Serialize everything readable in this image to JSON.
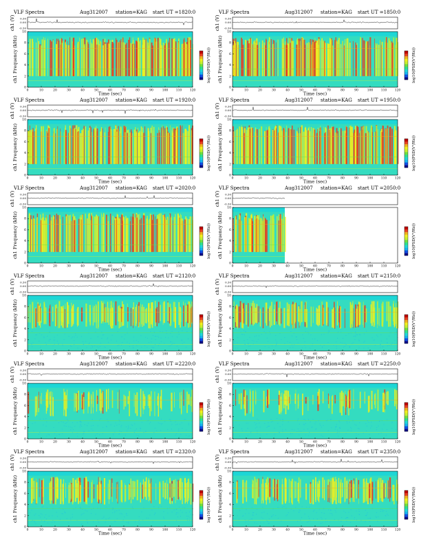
{
  "chart_data": [
    {
      "type": "heatmap",
      "title": "VLF Spectra",
      "date": "Aug312007",
      "station": "station=KAG",
      "start_ut": "start  UT  =1820:0",
      "upper_ylabel": "ch1 (V)",
      "upper_ticks": [
        "0.30",
        "0.00",
        "-0.30"
      ],
      "ylabel": "ch1 Frequency (kHz)",
      "xlabel": "Time  (sec)",
      "xlim": [
        0,
        120
      ],
      "ylim": [
        0,
        10
      ],
      "xticks": [
        0,
        10,
        20,
        30,
        40,
        50,
        60,
        70,
        80,
        90,
        100,
        110,
        120
      ],
      "yticks": [
        0,
        2,
        4,
        6,
        8,
        10
      ],
      "colorbar_label": "log10(PSD(V²/Hz))",
      "data_end_sec": 120,
      "activity": "high"
    },
    {
      "type": "heatmap",
      "title": "VLF Spectra",
      "date": "Aug312007",
      "station": "station=KAG",
      "start_ut": "start  UT  =1850:0",
      "upper_ylabel": "ch1 (V)",
      "upper_ticks": [
        "0.30",
        "0.00",
        "-0.30"
      ],
      "ylabel": "ch1 Frequency (kHz)",
      "xlabel": "Time  (sec)",
      "xlim": [
        0,
        120
      ],
      "ylim": [
        0,
        10
      ],
      "xticks": [
        0,
        10,
        20,
        30,
        40,
        50,
        60,
        70,
        80,
        90,
        100,
        110,
        120
      ],
      "yticks": [
        0,
        2,
        4,
        6,
        8,
        10
      ],
      "colorbar_label": "log10(PSD(V²/Hz))",
      "data_end_sec": 120,
      "activity": "high"
    },
    {
      "type": "heatmap",
      "title": "VLF Spectra",
      "date": "Aug312007",
      "station": "station=KAG",
      "start_ut": "start  UT  =1920:0",
      "upper_ylabel": "ch1 (V)",
      "upper_ticks": [
        "0.30",
        "0.00",
        "-0.30"
      ],
      "ylabel": "ch1 Frequency (kHz)",
      "xlabel": "Time  (sec)",
      "xlim": [
        0,
        120
      ],
      "ylim": [
        0,
        10
      ],
      "xticks": [
        0,
        10,
        20,
        30,
        40,
        50,
        60,
        70,
        80,
        90,
        100,
        110,
        120
      ],
      "yticks": [
        0,
        2,
        4,
        6,
        8,
        10
      ],
      "colorbar_label": "log10(PSD(V²/Hz))",
      "data_end_sec": 120,
      "activity": "high"
    },
    {
      "type": "heatmap",
      "title": "VLF Spectra",
      "date": "Aug312007",
      "station": "station=KAG",
      "start_ut": "start  UT  =1950:0",
      "upper_ylabel": "ch1 (V)",
      "upper_ticks": [
        "0.30",
        "0.00",
        "-0.30"
      ],
      "ylabel": "ch1 Frequency (kHz)",
      "xlabel": "Time  (sec)",
      "xlim": [
        0,
        120
      ],
      "ylim": [
        0,
        10
      ],
      "xticks": [
        0,
        10,
        20,
        30,
        40,
        50,
        60,
        70,
        80,
        90,
        100,
        110,
        120
      ],
      "yticks": [
        0,
        2,
        4,
        6,
        8,
        10
      ],
      "colorbar_label": "log10(PSD(V²/Hz))",
      "data_end_sec": 120,
      "activity": "high"
    },
    {
      "type": "heatmap",
      "title": "VLF Spectra",
      "date": "Aug312007",
      "station": "station=KAG",
      "start_ut": "start  UT  =2020:0",
      "upper_ylabel": "ch1 (V)",
      "upper_ticks": [
        "0.30",
        "0.00",
        "-0.30"
      ],
      "ylabel": "ch1 Frequency (kHz)",
      "xlabel": "Time  (sec)",
      "xlim": [
        0,
        120
      ],
      "ylim": [
        0,
        10
      ],
      "xticks": [
        0,
        10,
        20,
        30,
        40,
        50,
        60,
        70,
        80,
        90,
        100,
        110,
        120
      ],
      "yticks": [
        0,
        2,
        4,
        6,
        8,
        10
      ],
      "colorbar_label": "log10(PSD(V²/Hz))",
      "data_end_sec": 120,
      "activity": "high"
    },
    {
      "type": "heatmap",
      "title": "VLF Spectra",
      "date": "Aug312007",
      "station": "station=KAG",
      "start_ut": "start  UT  =2050:0",
      "upper_ylabel": "ch1 (V)",
      "upper_ticks": [
        "0.30",
        "0.00",
        "-0.30"
      ],
      "ylabel": "ch1 Frequency (kHz)",
      "xlabel": "Time  (sec)",
      "xlim": [
        0,
        120
      ],
      "ylim": [
        0,
        10
      ],
      "xticks": [
        0,
        10,
        20,
        30,
        40,
        50,
        60,
        70,
        80,
        90,
        100,
        110,
        120
      ],
      "yticks": [
        0,
        2,
        4,
        6,
        8,
        10
      ],
      "colorbar_label": "log10(PSD(V²/Hz))",
      "data_end_sec": 38,
      "activity": "high"
    },
    {
      "type": "heatmap",
      "title": "VLF Spectra",
      "date": "Aug312007",
      "station": "station=KAG",
      "start_ut": "start  UT  =2120:0",
      "upper_ylabel": "ch1 (V)",
      "upper_ticks": [
        "0.30",
        "0.00",
        "-0.30"
      ],
      "ylabel": "ch1 Frequency (kHz)",
      "xlabel": "Time  (sec)",
      "xlim": [
        0,
        120
      ],
      "ylim": [
        0,
        10
      ],
      "xticks": [
        0,
        10,
        20,
        30,
        40,
        50,
        60,
        70,
        80,
        90,
        100,
        110,
        120
      ],
      "yticks": [
        0,
        2,
        4,
        6,
        8,
        10
      ],
      "colorbar_label": "log10(PSD(V²/Hz))",
      "data_end_sec": 120,
      "activity": "medium"
    },
    {
      "type": "heatmap",
      "title": "VLF Spectra",
      "date": "Aug312007",
      "station": "station=KAG",
      "start_ut": "start  UT  =2150:0",
      "upper_ylabel": "ch1 (V)",
      "upper_ticks": [
        "0.30",
        "0.00",
        "-0.30"
      ],
      "ylabel": "ch1 Frequency (kHz)",
      "xlabel": "Time  (sec)",
      "xlim": [
        0,
        120
      ],
      "ylim": [
        0,
        10
      ],
      "xticks": [
        0,
        10,
        20,
        30,
        40,
        50,
        60,
        70,
        80,
        90,
        100,
        110,
        120
      ],
      "yticks": [
        0,
        2,
        4,
        6,
        8,
        10
      ],
      "colorbar_label": "log10(PSD(V²/Hz))",
      "data_end_sec": 120,
      "activity": "medium"
    },
    {
      "type": "heatmap",
      "title": "VLF Spectra",
      "date": "Aug312007",
      "station": "station=KAG",
      "start_ut": "start  UT  =2220:0",
      "upper_ylabel": "ch1 (V)",
      "upper_ticks": [
        "0.30",
        "0.00",
        "-0.30"
      ],
      "ylabel": "ch1 Frequency (kHz)",
      "xlabel": "Time  (sec)",
      "xlim": [
        0,
        120
      ],
      "ylim": [
        0,
        10
      ],
      "xticks": [
        0,
        10,
        20,
        30,
        40,
        50,
        60,
        70,
        80,
        90,
        100,
        110,
        120
      ],
      "yticks": [
        0,
        2,
        4,
        6,
        8,
        10
      ],
      "colorbar_label": "log10(PSD(V²/Hz))",
      "data_end_sec": 120,
      "activity": "low"
    },
    {
      "type": "heatmap",
      "title": "VLF Spectra",
      "date": "Aug312007",
      "station": "station=KAG",
      "start_ut": "start  UT  =2250:0",
      "upper_ylabel": "ch1 (V)",
      "upper_ticks": [
        "0.30",
        "0.00",
        "-0.30"
      ],
      "ylabel": "ch1 Frequency (kHz)",
      "xlabel": "Time  (sec)",
      "xlim": [
        0,
        120
      ],
      "ylim": [
        0,
        10
      ],
      "xticks": [
        0,
        10,
        20,
        30,
        40,
        50,
        60,
        70,
        80,
        90,
        100,
        110,
        120
      ],
      "yticks": [
        0,
        2,
        4,
        6,
        8,
        10
      ],
      "colorbar_label": "log10(PSD(V²/Hz))",
      "data_end_sec": 120,
      "activity": "low"
    },
    {
      "type": "heatmap",
      "title": "VLF Spectra",
      "date": "Aug312007",
      "station": "station=KAG",
      "start_ut": "start  UT  =2320:0",
      "upper_ylabel": "ch1 (V)",
      "upper_ticks": [
        "0.30",
        "0.00",
        "-0.30"
      ],
      "ylabel": "ch1 Frequency (kHz)",
      "xlabel": "Time  (sec)",
      "xlim": [
        0,
        120
      ],
      "ylim": [
        0,
        10
      ],
      "xticks": [
        0,
        10,
        20,
        30,
        40,
        50,
        60,
        70,
        80,
        90,
        100,
        110,
        120
      ],
      "yticks": [
        0,
        2,
        4,
        6,
        8,
        10
      ],
      "colorbar_label": "log10(PSD(V²/Hz))",
      "data_end_sec": 120,
      "activity": "medium"
    },
    {
      "type": "heatmap",
      "title": "VLF Spectra",
      "date": "Aug312007",
      "station": "station=KAG",
      "start_ut": "start  UT  =2350:0",
      "upper_ylabel": "ch1 (V)",
      "upper_ticks": [
        "0.30",
        "0.00",
        "-0.30"
      ],
      "ylabel": "ch1 Frequency (kHz)",
      "xlabel": "Time  (sec)",
      "xlim": [
        0,
        120
      ],
      "ylim": [
        0,
        10
      ],
      "xticks": [
        0,
        10,
        20,
        30,
        40,
        50,
        60,
        70,
        80,
        90,
        100,
        110,
        120
      ],
      "yticks": [
        0,
        2,
        4,
        6,
        8,
        10
      ],
      "colorbar_label": "log10(PSD(V²/Hz))",
      "data_end_sec": 120,
      "activity": "medium"
    }
  ],
  "colors": {
    "scale": [
      "#0a0a8c",
      "#1050e6",
      "#18b4f0",
      "#20d8d8",
      "#30e090",
      "#70e040",
      "#c8f030",
      "#f0f020",
      "#f0b020",
      "#e84020",
      "#c00000"
    ],
    "background": "#1ed6d6",
    "spectrogram_base": "#34dcc0"
  }
}
